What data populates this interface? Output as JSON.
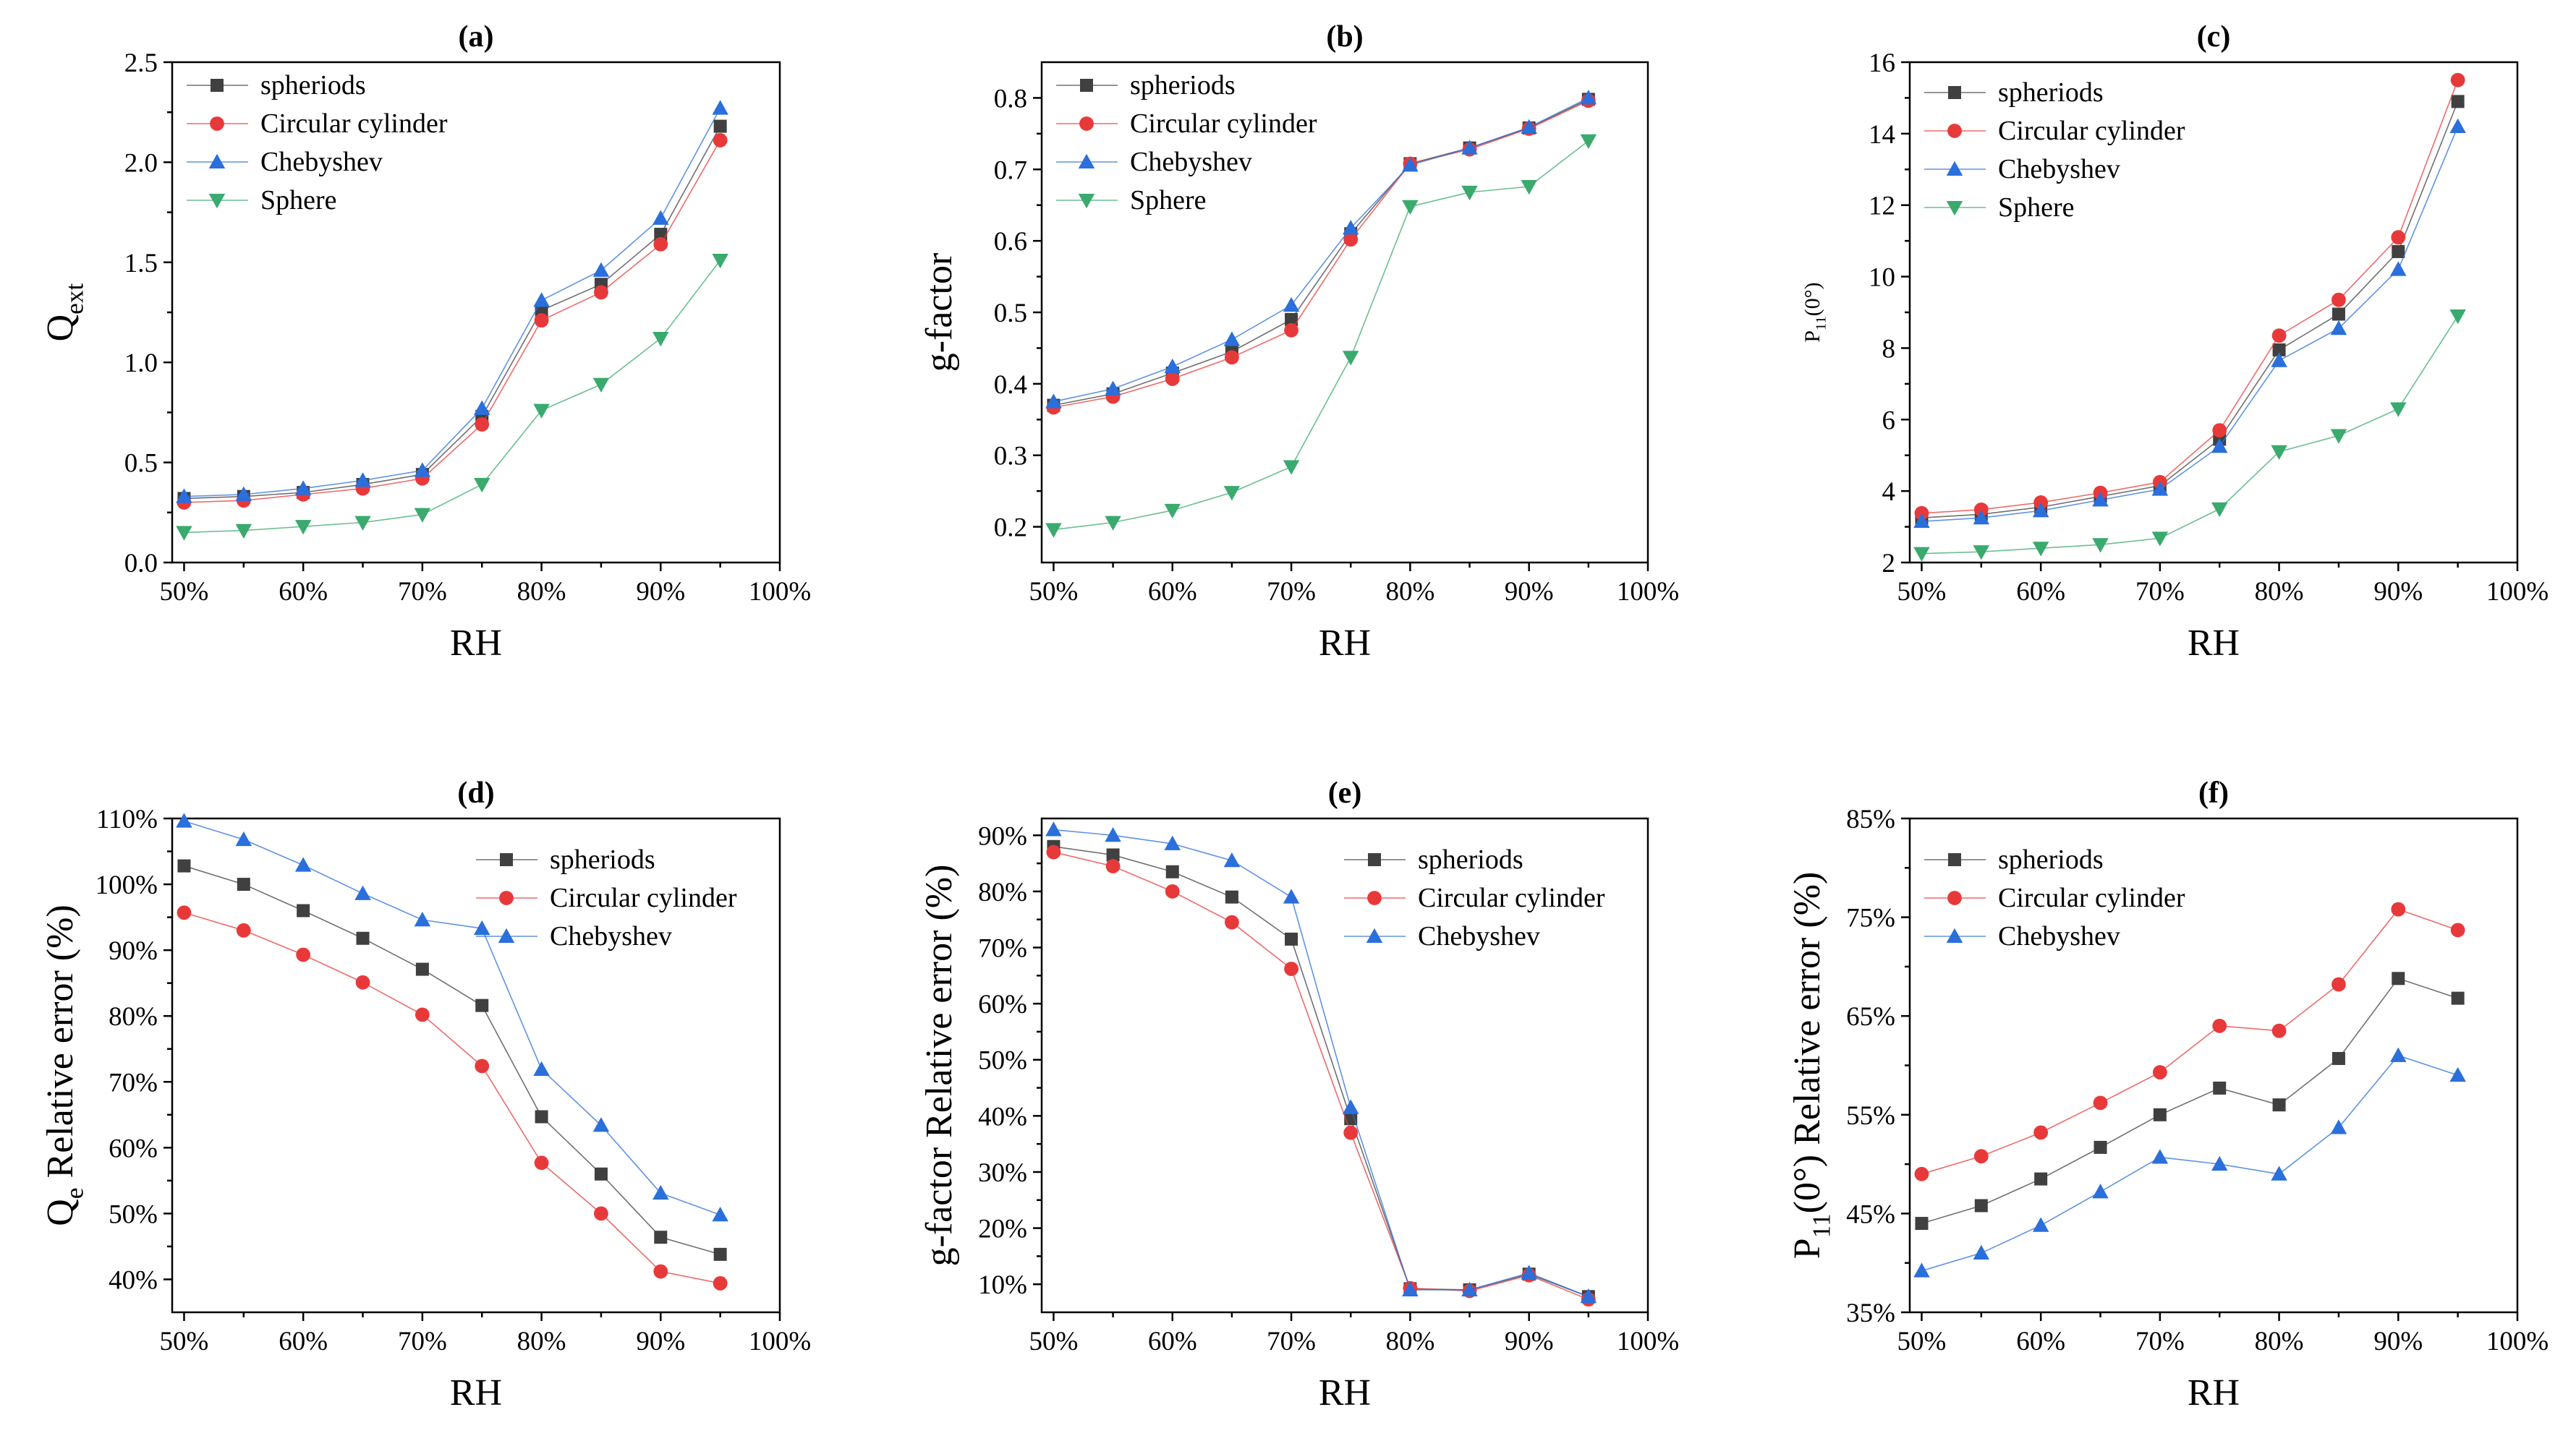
{
  "chart_data": [
    {
      "type": "line",
      "title": "(a)",
      "xlabel": "RH",
      "ylabel": "Qext",
      "ylabel_main": "Q",
      "ylabel_sub": "ext",
      "ylabel_rest": "",
      "categories": [
        "50%",
        "55%",
        "60%",
        "65%",
        "70%",
        "75%",
        "80%",
        "85%",
        "90%",
        "95%"
      ],
      "x": [
        50,
        55,
        60,
        65,
        70,
        75,
        80,
        85,
        90,
        95
      ],
      "xlim": [
        49,
        100
      ],
      "xticks": [
        50,
        60,
        70,
        80,
        90,
        100
      ],
      "xtick_labels": [
        "50%",
        "60%",
        "70%",
        "80%",
        "90%",
        "100%"
      ],
      "ylim": [
        0.0,
        2.5
      ],
      "yticks": [
        0.0,
        0.5,
        1.0,
        1.5,
        2.0,
        2.5
      ],
      "ytick_labels": [
        "0.0",
        "0.5",
        "1.0",
        "1.5",
        "2.0",
        "2.5"
      ],
      "legend_position": "top-left",
      "series": [
        {
          "name": "spheriods",
          "marker": "square",
          "color": "#404040",
          "values": [
            0.32,
            0.33,
            0.35,
            0.39,
            0.44,
            0.73,
            1.26,
            1.39,
            1.64,
            2.18
          ]
        },
        {
          "name": "Circular cylinder",
          "marker": "circle",
          "color": "#e8393a",
          "values": [
            0.3,
            0.31,
            0.34,
            0.37,
            0.42,
            0.69,
            1.21,
            1.35,
            1.59,
            2.11
          ]
        },
        {
          "name": "Chebyshev",
          "marker": "triangle-up",
          "color": "#2a6fdb",
          "values": [
            0.33,
            0.34,
            0.37,
            0.41,
            0.46,
            0.77,
            1.31,
            1.46,
            1.72,
            2.27
          ]
        },
        {
          "name": "Sphere",
          "marker": "triangle-down",
          "color": "#3aaa6e",
          "values": [
            0.15,
            0.16,
            0.18,
            0.2,
            0.24,
            0.39,
            0.76,
            0.89,
            1.12,
            1.51
          ]
        }
      ]
    },
    {
      "type": "line",
      "title": "(b)",
      "xlabel": "RH",
      "ylabel": "g-factor",
      "ylabel_main": "g-factor",
      "ylabel_sub": "",
      "ylabel_rest": "",
      "categories": [
        "50%",
        "55%",
        "60%",
        "65%",
        "70%",
        "75%",
        "80%",
        "85%",
        "90%",
        "95%"
      ],
      "x": [
        50,
        55,
        60,
        65,
        70,
        75,
        80,
        85,
        90,
        95
      ],
      "xlim": [
        49,
        100
      ],
      "xticks": [
        50,
        60,
        70,
        80,
        90,
        100
      ],
      "xtick_labels": [
        "50%",
        "60%",
        "70%",
        "80%",
        "90%",
        "100%"
      ],
      "ylim": [
        0.15,
        0.85
      ],
      "yticks": [
        0.2,
        0.3,
        0.4,
        0.5,
        0.6,
        0.7,
        0.8
      ],
      "ytick_labels": [
        "0.2",
        "0.3",
        "0.4",
        "0.5",
        "0.6",
        "0.7",
        "0.8"
      ],
      "legend_position": "top-left",
      "series": [
        {
          "name": "spheriods",
          "marker": "square",
          "color": "#404040",
          "values": [
            0.37,
            0.386,
            0.415,
            0.445,
            0.49,
            0.61,
            0.708,
            0.73,
            0.758,
            0.798
          ]
        },
        {
          "name": "Circular cylinder",
          "marker": "circle",
          "color": "#e8393a",
          "values": [
            0.367,
            0.382,
            0.407,
            0.437,
            0.475,
            0.602,
            0.708,
            0.728,
            0.757,
            0.796
          ]
        },
        {
          "name": "Chebyshev",
          "marker": "triangle-up",
          "color": "#2a6fdb",
          "values": [
            0.375,
            0.393,
            0.424,
            0.462,
            0.51,
            0.618,
            0.706,
            0.73,
            0.759,
            0.8
          ]
        },
        {
          "name": "Sphere",
          "marker": "triangle-down",
          "color": "#3aaa6e",
          "values": [
            0.196,
            0.206,
            0.223,
            0.248,
            0.284,
            0.437,
            0.648,
            0.668,
            0.676,
            0.74
          ]
        }
      ]
    },
    {
      "type": "line",
      "title": "(c)",
      "xlabel": "RH",
      "ylabel": "P11(0°)",
      "ylabel_main": "P",
      "ylabel_sub": "11",
      "ylabel_rest": "(0°)",
      "ylabel_size": "small",
      "categories": [
        "50%",
        "55%",
        "60%",
        "65%",
        "70%",
        "75%",
        "80%",
        "85%",
        "90%",
        "95%"
      ],
      "x": [
        50,
        55,
        60,
        65,
        70,
        75,
        80,
        85,
        90,
        95
      ],
      "xlim": [
        49,
        100
      ],
      "xticks": [
        50,
        60,
        70,
        80,
        90,
        100
      ],
      "xtick_labels": [
        "50%",
        "60%",
        "70%",
        "80%",
        "90%",
        "100%"
      ],
      "ylim": [
        2,
        16
      ],
      "yticks": [
        2,
        4,
        6,
        8,
        10,
        12,
        14,
        16
      ],
      "ytick_labels": [
        "2",
        "4",
        "6",
        "8",
        "10",
        "12",
        "14",
        "16"
      ],
      "legend_position": "top-left",
      "series": [
        {
          "name": "spheriods",
          "marker": "square",
          "color": "#404040",
          "values": [
            3.25,
            3.35,
            3.55,
            3.85,
            4.15,
            5.45,
            7.95,
            8.95,
            10.7,
            14.9
          ]
        },
        {
          "name": "Circular cylinder",
          "marker": "circle",
          "color": "#e8393a",
          "values": [
            3.38,
            3.48,
            3.68,
            3.95,
            4.25,
            5.7,
            8.35,
            9.35,
            11.1,
            15.5
          ]
        },
        {
          "name": "Chebyshev",
          "marker": "triangle-up",
          "color": "#2a6fdb",
          "values": [
            3.15,
            3.25,
            3.45,
            3.75,
            4.05,
            5.25,
            7.65,
            8.55,
            10.2,
            14.2
          ]
        },
        {
          "name": "Sphere",
          "marker": "triangle-down",
          "color": "#3aaa6e",
          "values": [
            2.25,
            2.3,
            2.4,
            2.5,
            2.68,
            3.5,
            5.1,
            5.55,
            6.3,
            8.9
          ]
        }
      ]
    },
    {
      "type": "line",
      "title": "(d)",
      "xlabel": "RH",
      "ylabel": "Qe Relative error (%)",
      "ylabel_main": "Q",
      "ylabel_sub": "e",
      "ylabel_rest": " Relative error (%)",
      "categories": [
        "50%",
        "55%",
        "60%",
        "65%",
        "70%",
        "75%",
        "80%",
        "85%",
        "90%",
        "95%"
      ],
      "x": [
        50,
        55,
        60,
        65,
        70,
        75,
        80,
        85,
        90,
        95
      ],
      "xlim": [
        49,
        100
      ],
      "xticks": [
        50,
        60,
        70,
        80,
        90,
        100
      ],
      "xtick_labels": [
        "50%",
        "60%",
        "70%",
        "80%",
        "90%",
        "100%"
      ],
      "ylim": [
        35,
        110
      ],
      "yticks": [
        40,
        50,
        60,
        70,
        80,
        90,
        100,
        110
      ],
      "ytick_labels": [
        "40%",
        "50%",
        "60%",
        "70%",
        "80%",
        "90%",
        "100%",
        "110%"
      ],
      "legend_position": "top-right",
      "series": [
        {
          "name": "spheriods",
          "marker": "square",
          "color": "#404040",
          "values": [
            102.8,
            100.0,
            96.0,
            91.8,
            87.1,
            81.6,
            64.7,
            56.0,
            46.4,
            43.8
          ]
        },
        {
          "name": "Circular cylinder",
          "marker": "circle",
          "color": "#e8393a",
          "values": [
            95.7,
            93.0,
            89.3,
            85.1,
            80.2,
            72.4,
            57.7,
            50.0,
            41.2,
            39.4
          ]
        },
        {
          "name": "Chebyshev",
          "marker": "triangle-up",
          "color": "#2a6fdb",
          "values": [
            109.6,
            106.8,
            102.9,
            98.6,
            94.6,
            93.3,
            71.9,
            63.4,
            53.1,
            49.8
          ]
        }
      ]
    },
    {
      "type": "line",
      "title": "(e)",
      "xlabel": "RH",
      "ylabel": "g-factor Relative error (%)",
      "ylabel_main": "g-factor Relative error (%)",
      "ylabel_sub": "",
      "ylabel_rest": "",
      "categories": [
        "50%",
        "55%",
        "60%",
        "65%",
        "70%",
        "75%",
        "80%",
        "85%",
        "90%",
        "95%"
      ],
      "x": [
        50,
        55,
        60,
        65,
        70,
        75,
        80,
        85,
        90,
        95
      ],
      "xlim": [
        49,
        100
      ],
      "xticks": [
        50,
        60,
        70,
        80,
        90,
        100
      ],
      "xtick_labels": [
        "50%",
        "60%",
        "70%",
        "80%",
        "90%",
        "100%"
      ],
      "ylim": [
        5,
        93
      ],
      "yticks": [
        10,
        20,
        30,
        40,
        50,
        60,
        70,
        80,
        90
      ],
      "ytick_labels": [
        "10%",
        "20%",
        "30%",
        "40%",
        "50%",
        "60%",
        "70%",
        "80%",
        "90%"
      ],
      "legend_position": "top-right",
      "series": [
        {
          "name": "spheriods",
          "marker": "square",
          "color": "#404040",
          "values": [
            88.0,
            86.5,
            83.5,
            79.0,
            71.5,
            39.5,
            9.2,
            9.0,
            11.8,
            7.8
          ]
        },
        {
          "name": "Circular cylinder",
          "marker": "circle",
          "color": "#e8393a",
          "values": [
            87.0,
            84.5,
            80.0,
            74.5,
            66.2,
            37.0,
            9.3,
            8.8,
            11.6,
            7.3
          ]
        },
        {
          "name": "Chebyshev",
          "marker": "triangle-up",
          "color": "#2a6fdb",
          "values": [
            91.0,
            90.0,
            88.5,
            85.5,
            79.0,
            41.5,
            9.0,
            9.0,
            12.0,
            7.8
          ]
        }
      ]
    },
    {
      "type": "line",
      "title": "(f)",
      "xlabel": "RH",
      "ylabel": "P11(0°) Relative error (%)",
      "ylabel_main": "P",
      "ylabel_sub": "11",
      "ylabel_rest": "(0°) Relative error (%)",
      "categories": [
        "50%",
        "55%",
        "60%",
        "65%",
        "70%",
        "75%",
        "80%",
        "85%",
        "90%",
        "95%"
      ],
      "x": [
        50,
        55,
        60,
        65,
        70,
        75,
        80,
        85,
        90,
        95
      ],
      "xlim": [
        49,
        100
      ],
      "xticks": [
        50,
        60,
        70,
        80,
        90,
        100
      ],
      "xtick_labels": [
        "50%",
        "60%",
        "70%",
        "80%",
        "90%",
        "100%"
      ],
      "ylim": [
        35,
        85
      ],
      "yticks": [
        35,
        45,
        55,
        65,
        75,
        85
      ],
      "ytick_labels": [
        "35%",
        "45%",
        "55%",
        "65%",
        "75%",
        "85%"
      ],
      "legend_position": "top-left",
      "series": [
        {
          "name": "spheriods",
          "marker": "square",
          "color": "#404040",
          "values": [
            44.0,
            45.8,
            48.5,
            51.7,
            55.0,
            57.7,
            56.0,
            60.7,
            68.8,
            66.8
          ]
        },
        {
          "name": "Circular cylinder",
          "marker": "circle",
          "color": "#e8393a",
          "values": [
            49.0,
            50.8,
            53.2,
            56.2,
            59.3,
            64.0,
            63.5,
            68.2,
            75.8,
            73.7
          ]
        },
        {
          "name": "Chebyshev",
          "marker": "triangle-up",
          "color": "#2a6fdb",
          "values": [
            39.2,
            41.0,
            43.8,
            47.2,
            50.7,
            50.0,
            49.0,
            53.7,
            61.0,
            59.0
          ]
        }
      ]
    }
  ]
}
